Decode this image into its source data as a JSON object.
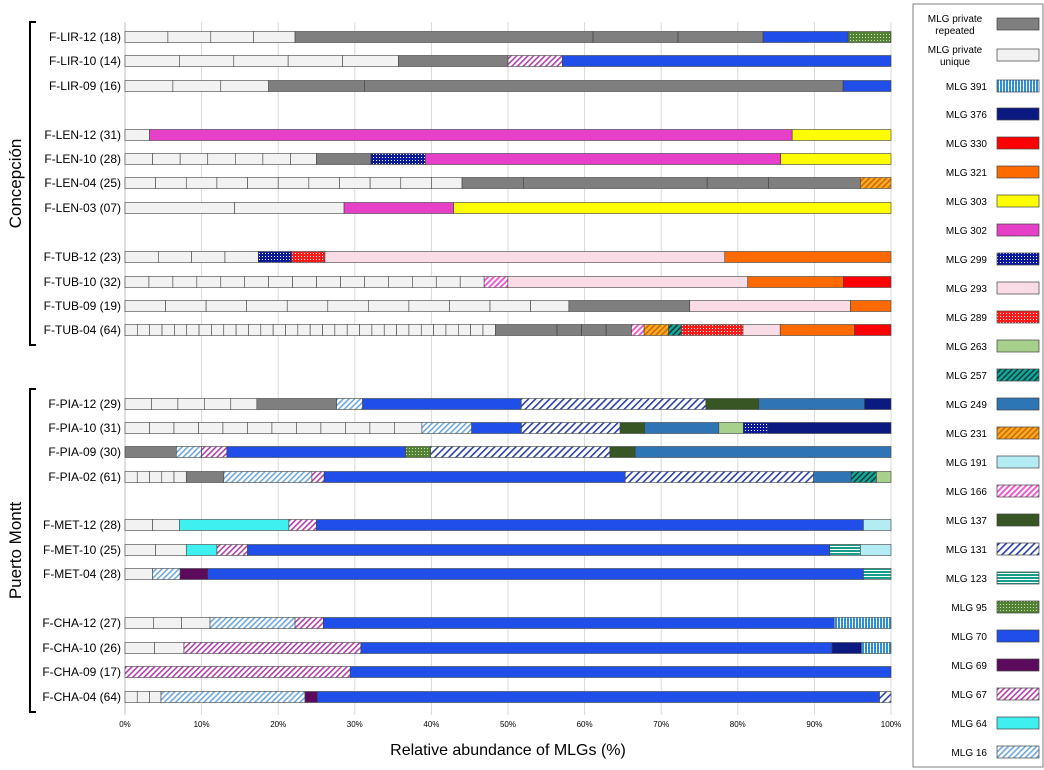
{
  "chart_data": {
    "type": "bar",
    "orientation": "horizontal",
    "stacked": true,
    "xlabel": "Relative abundance of MLGs (%)",
    "ylabel": "",
    "xlim": [
      0,
      100
    ],
    "x_ticks": [
      "0%",
      "10%",
      "20%",
      "30%",
      "40%",
      "50%",
      "60%",
      "70%",
      "80%",
      "90%",
      "100%"
    ],
    "grid": true,
    "legend_position": "right",
    "groups": [
      {
        "label": "Concepción",
        "first": 0,
        "last": 10
      },
      {
        "label": "Puerto Montt",
        "first": 11,
        "last": 21
      }
    ],
    "legend": [
      {
        "key": "rep",
        "label": "MLG private repeated"
      },
      {
        "key": "uni",
        "label": "MLG private unique"
      },
      {
        "key": "m391",
        "label": "MLG 391"
      },
      {
        "key": "m376",
        "label": "MLG 376"
      },
      {
        "key": "m330",
        "label": "MLG 330"
      },
      {
        "key": "m321",
        "label": "MLG 321"
      },
      {
        "key": "m303",
        "label": "MLG 303"
      },
      {
        "key": "m302",
        "label": "MLG 302"
      },
      {
        "key": "m299",
        "label": "MLG 299"
      },
      {
        "key": "m293",
        "label": "MLG 293"
      },
      {
        "key": "m289",
        "label": "MLG 289"
      },
      {
        "key": "m263",
        "label": "MLG 263"
      },
      {
        "key": "m257",
        "label": "MLG 257"
      },
      {
        "key": "m249",
        "label": "MLG 249"
      },
      {
        "key": "m231",
        "label": "MLG 231"
      },
      {
        "key": "m191",
        "label": "MLG 191"
      },
      {
        "key": "m166",
        "label": "MLG 166"
      },
      {
        "key": "m137",
        "label": "MLG 137"
      },
      {
        "key": "m131",
        "label": "MLG 131"
      },
      {
        "key": "m123",
        "label": "MLG 123"
      },
      {
        "key": "m95",
        "label": "MLG 95"
      },
      {
        "key": "m70",
        "label": "MLG 70"
      },
      {
        "key": "m69",
        "label": "MLG 69"
      },
      {
        "key": "m67",
        "label": "MLG 67"
      },
      {
        "key": "m64",
        "label": "MLG 64"
      },
      {
        "key": "m16",
        "label": "MLG 16"
      }
    ],
    "series_colors": {
      "rep": "#7f7f7f",
      "uni": "#f2f2f2",
      "m391": "#2e8fd6",
      "m376": "#0a1a80",
      "m330": "#ff0000",
      "m321": "#ff6a00",
      "m303": "#ffff00",
      "m302": "#e63fc8",
      "m299": "#0b1a9c",
      "m293": "#fadce6",
      "m289": "#ff1a1a",
      "m263": "#a8d08d",
      "m257": "#14a69a",
      "m249": "#2e75b6",
      "m231": "#ffa820",
      "m191": "#b4ecf4",
      "m166": "#ef5bd0",
      "m137": "#375623",
      "m131": "#2c3fa8",
      "m123": "#1a9e8c",
      "m95": "#548235",
      "m70": "#1f4fe8",
      "m69": "#5c0a5c",
      "m67": "#b041a8",
      "m64": "#3ff0f0",
      "m16": "#9dc3e6"
    },
    "rows": [
      {
        "label": "F-LIR-12 (18)",
        "segments": [
          [
            "uni",
            5.6
          ],
          [
            "uni",
            5.6
          ],
          [
            "uni",
            5.6
          ],
          [
            "uni",
            5.4
          ],
          [
            "rep",
            38.9
          ],
          [
            "rep",
            11.1
          ],
          [
            "rep",
            11.1
          ],
          [
            "m70",
            11.1
          ],
          [
            "m95",
            5.6
          ]
        ]
      },
      {
        "label": "F-LIR-10 (14)",
        "segments": [
          [
            "uni",
            7.1
          ],
          [
            "uni",
            7.1
          ],
          [
            "uni",
            7.1
          ],
          [
            "uni",
            7.1
          ],
          [
            "uni",
            7.3
          ],
          [
            "rep",
            14.3
          ],
          [
            "m67",
            7.1
          ],
          [
            "m70",
            42.9
          ]
        ]
      },
      {
        "label": "F-LIR-09 (16)",
        "segments": [
          [
            "uni",
            6.25
          ],
          [
            "uni",
            6.25
          ],
          [
            "uni",
            6.25
          ],
          [
            "rep",
            12.5
          ],
          [
            "rep",
            62.5
          ],
          [
            "m70",
            6.25
          ]
        ]
      },
      {
        "label": "F-LEN-12 (31)",
        "segments": [
          [
            "uni",
            3.2
          ],
          [
            "m302",
            83.9
          ],
          [
            "m303",
            12.9
          ]
        ]
      },
      {
        "label": "F-LEN-10 (28)",
        "segments": [
          [
            "uni",
            3.6
          ],
          [
            "uni",
            3.6
          ],
          [
            "uni",
            3.6
          ],
          [
            "uni",
            3.6
          ],
          [
            "uni",
            3.6
          ],
          [
            "uni",
            3.6
          ],
          [
            "uni",
            3.4
          ],
          [
            "rep",
            7.1
          ],
          [
            "m299",
            7.1
          ],
          [
            "m302",
            46.4
          ],
          [
            "m303",
            14.4
          ]
        ]
      },
      {
        "label": "F-LEN-04 (25)",
        "segments": [
          [
            "uni",
            4
          ],
          [
            "uni",
            4
          ],
          [
            "uni",
            4
          ],
          [
            "uni",
            4
          ],
          [
            "uni",
            4
          ],
          [
            "uni",
            4
          ],
          [
            "uni",
            4
          ],
          [
            "uni",
            4
          ],
          [
            "uni",
            4
          ],
          [
            "uni",
            4
          ],
          [
            "uni",
            4
          ],
          [
            "rep",
            8
          ],
          [
            "rep",
            24
          ],
          [
            "rep",
            8
          ],
          [
            "rep",
            12
          ],
          [
            "m231",
            4
          ]
        ]
      },
      {
        "label": "F-LEN-03 (07)",
        "segments": [
          [
            "uni",
            14.3
          ],
          [
            "uni",
            14.3
          ],
          [
            "m302",
            14.3
          ],
          [
            "m303",
            57.1
          ]
        ]
      },
      {
        "label": "F-TUB-12 (23)",
        "segments": [
          [
            "uni",
            4.35
          ],
          [
            "uni",
            4.35
          ],
          [
            "uni",
            4.35
          ],
          [
            "uni",
            4.35
          ],
          [
            "m299",
            4.35
          ],
          [
            "m289",
            4.35
          ],
          [
            "m293",
            52.2
          ],
          [
            "m321",
            21.7
          ]
        ]
      },
      {
        "label": "F-TUB-10 (32)",
        "segments": [
          [
            "uni",
            3.125
          ],
          [
            "uni",
            3.125
          ],
          [
            "uni",
            3.125
          ],
          [
            "uni",
            3.125
          ],
          [
            "uni",
            3.125
          ],
          [
            "uni",
            3.125
          ],
          [
            "uni",
            3.125
          ],
          [
            "uni",
            3.125
          ],
          [
            "uni",
            3.125
          ],
          [
            "uni",
            3.125
          ],
          [
            "uni",
            3.125
          ],
          [
            "uni",
            3.125
          ],
          [
            "uni",
            3.125
          ],
          [
            "uni",
            3.125
          ],
          [
            "uni",
            3.125
          ],
          [
            "m166",
            3.1
          ],
          [
            "m293",
            31.3
          ],
          [
            "m321",
            12.5
          ],
          [
            "m330",
            6.2
          ]
        ]
      },
      {
        "label": "F-TUB-09 (19)",
        "segments": [
          [
            "uni",
            5.3
          ],
          [
            "uni",
            5.3
          ],
          [
            "uni",
            5.3
          ],
          [
            "uni",
            5.3
          ],
          [
            "uni",
            5.3
          ],
          [
            "uni",
            5.3
          ],
          [
            "uni",
            5.3
          ],
          [
            "uni",
            5.3
          ],
          [
            "uni",
            5.3
          ],
          [
            "uni",
            5.3
          ],
          [
            "uni",
            5.0
          ],
          [
            "rep",
            15.8
          ],
          [
            "m293",
            21
          ],
          [
            "m321",
            5.3
          ]
        ]
      },
      {
        "label": "F-TUB-04 (64)",
        "segments": [
          [
            "uni",
            1.56
          ],
          [
            "uni",
            1.56
          ],
          [
            "uni",
            1.56
          ],
          [
            "uni",
            1.56
          ],
          [
            "uni",
            1.56
          ],
          [
            "uni",
            1.56
          ],
          [
            "uni",
            1.56
          ],
          [
            "uni",
            1.56
          ],
          [
            "uni",
            1.56
          ],
          [
            "uni",
            1.56
          ],
          [
            "uni",
            1.56
          ],
          [
            "uni",
            1.56
          ],
          [
            "uni",
            1.56
          ],
          [
            "uni",
            1.56
          ],
          [
            "uni",
            1.56
          ],
          [
            "uni",
            1.56
          ],
          [
            "uni",
            1.56
          ],
          [
            "uni",
            1.56
          ],
          [
            "uni",
            1.56
          ],
          [
            "uni",
            1.56
          ],
          [
            "uni",
            1.56
          ],
          [
            "uni",
            1.56
          ],
          [
            "uni",
            1.56
          ],
          [
            "uni",
            1.56
          ],
          [
            "uni",
            1.56
          ],
          [
            "uni",
            1.56
          ],
          [
            "uni",
            1.56
          ],
          [
            "uni",
            1.56
          ],
          [
            "uni",
            1.56
          ],
          [
            "uni",
            1.56
          ],
          [
            "rep",
            7.8
          ],
          [
            "rep",
            3.1
          ],
          [
            "rep",
            3.1
          ],
          [
            "rep",
            3.2
          ],
          [
            "m166",
            1.6
          ],
          [
            "m231",
            3.1
          ],
          [
            "m257",
            1.6
          ],
          [
            "m289",
            7.8
          ],
          [
            "m293",
            4.7
          ],
          [
            "m321",
            9.4
          ],
          [
            "m330",
            4.6
          ]
        ]
      },
      {
        "label": "F-PIA-12 (29)",
        "segments": [
          [
            "uni",
            3.45
          ],
          [
            "uni",
            3.45
          ],
          [
            "uni",
            3.45
          ],
          [
            "uni",
            3.45
          ],
          [
            "uni",
            3.4
          ],
          [
            "rep",
            10.4
          ],
          [
            "m16",
            3.4
          ],
          [
            "m70",
            20.7
          ],
          [
            "m131",
            24.1
          ],
          [
            "m137",
            6.9
          ],
          [
            "m249",
            13.8
          ],
          [
            "m376",
            3.45
          ]
        ]
      },
      {
        "label": "F-PIA-10 (31)",
        "segments": [
          [
            "uni",
            3.2
          ],
          [
            "uni",
            3.2
          ],
          [
            "uni",
            3.2
          ],
          [
            "uni",
            3.2
          ],
          [
            "uni",
            3.2
          ],
          [
            "uni",
            3.2
          ],
          [
            "uni",
            3.2
          ],
          [
            "uni",
            3.2
          ],
          [
            "uni",
            3.2
          ],
          [
            "uni",
            3.2
          ],
          [
            "uni",
            3.2
          ],
          [
            "uni",
            3.6
          ],
          [
            "m16",
            6.5
          ],
          [
            "m70",
            6.5
          ],
          [
            "m131",
            12.9
          ],
          [
            "m137",
            3.2
          ],
          [
            "m249",
            9.7
          ],
          [
            "m263",
            3.2
          ],
          [
            "m299",
            3.2
          ],
          [
            "m376",
            16.1
          ]
        ]
      },
      {
        "label": "F-PIA-09 (30)",
        "segments": [
          [
            "rep",
            6.7
          ],
          [
            "m16",
            3.3
          ],
          [
            "m67",
            3.3
          ],
          [
            "m70",
            23.3
          ],
          [
            "m95",
            3.3
          ],
          [
            "m131",
            23.4
          ],
          [
            "m137",
            3.3
          ],
          [
            "m249",
            33.4
          ]
        ]
      },
      {
        "label": "F-PIA-02 (61)",
        "segments": [
          [
            "uni",
            1.6
          ],
          [
            "uni",
            1.6
          ],
          [
            "uni",
            1.6
          ],
          [
            "uni",
            1.6
          ],
          [
            "uni",
            1.6
          ],
          [
            "rep",
            4.9
          ],
          [
            "m16",
            11.5
          ],
          [
            "m67",
            1.6
          ],
          [
            "m70",
            39.3
          ],
          [
            "m131",
            24.6
          ],
          [
            "m249",
            4.9
          ],
          [
            "m257",
            3.3
          ],
          [
            "m263",
            1.9
          ]
        ]
      },
      {
        "label": "F-MET-12 (28)",
        "segments": [
          [
            "uni",
            3.6
          ],
          [
            "uni",
            3.5
          ],
          [
            "m64",
            14.3
          ],
          [
            "m67",
            3.6
          ],
          [
            "m70",
            71.4
          ],
          [
            "m191",
            3.6
          ]
        ]
      },
      {
        "label": "F-MET-10 (25)",
        "segments": [
          [
            "uni",
            4
          ],
          [
            "uni",
            4
          ],
          [
            "m64",
            4
          ],
          [
            "m67",
            4
          ],
          [
            "m70",
            76
          ],
          [
            "m123",
            4
          ],
          [
            "m191",
            4
          ]
        ]
      },
      {
        "label": "F-MET-04 (28)",
        "segments": [
          [
            "uni",
            3.6
          ],
          [
            "m16",
            3.6
          ],
          [
            "m69",
            3.6
          ],
          [
            "m70",
            85.6
          ],
          [
            "m123",
            3.6
          ]
        ]
      },
      {
        "label": "F-CHA-12 (27)",
        "segments": [
          [
            "uni",
            3.7
          ],
          [
            "uni",
            3.7
          ],
          [
            "uni",
            3.7
          ],
          [
            "m16",
            11.1
          ],
          [
            "m67",
            3.7
          ],
          [
            "m70",
            66.7
          ],
          [
            "m391",
            7.4
          ]
        ]
      },
      {
        "label": "F-CHA-10 (26)",
        "segments": [
          [
            "uni",
            3.85
          ],
          [
            "uni",
            3.85
          ],
          [
            "m67",
            23.1
          ],
          [
            "m70",
            61.5
          ],
          [
            "m376",
            3.85
          ],
          [
            "m391",
            3.85
          ]
        ]
      },
      {
        "label": "F-CHA-09 (17)",
        "segments": [
          [
            "m67",
            29.4
          ],
          [
            "m70",
            70.6
          ]
        ]
      },
      {
        "label": "F-CHA-04 (64)",
        "segments": [
          [
            "uni",
            1.6
          ],
          [
            "uni",
            1.6
          ],
          [
            "uni",
            1.5
          ],
          [
            "m16",
            18.8
          ],
          [
            "m69",
            1.6
          ],
          [
            "m70",
            73.4
          ],
          [
            "m131",
            1.5
          ]
        ]
      }
    ]
  }
}
